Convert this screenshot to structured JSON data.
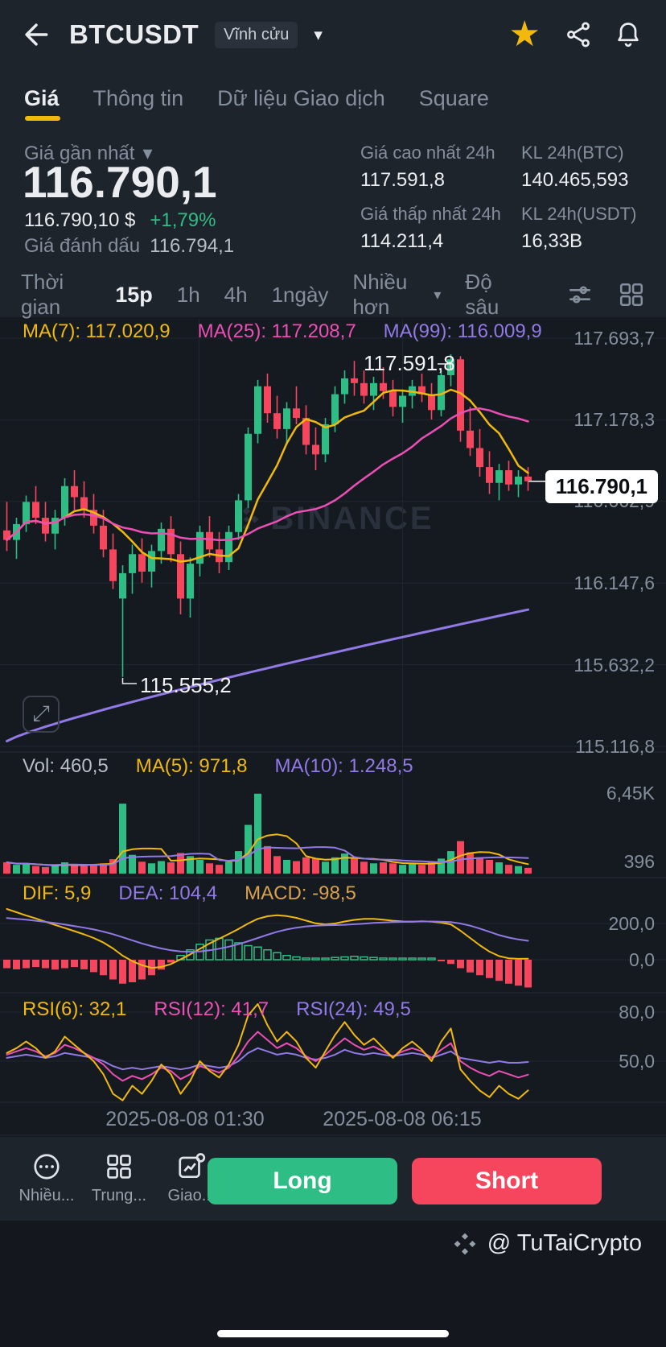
{
  "colors": {
    "green": "#2EBD85",
    "red": "#F6465D",
    "yellow": "#F0B90B",
    "purple": "#9179E6",
    "pink": "#EC4FB4",
    "accent": "#F0B90B"
  },
  "icons": {
    "chevron_down": "▾",
    "star": "★",
    "expand_glyph": "⤢"
  },
  "header": {
    "title": "BTCUSDT",
    "contract_badge": "Vĩnh cửu"
  },
  "tabs": [
    {
      "label": "Giá",
      "active": true
    },
    {
      "label": "Thông tin",
      "active": false
    },
    {
      "label": "Dữ liệu Giao dịch",
      "active": false
    },
    {
      "label": "Square",
      "active": false
    }
  ],
  "ticker": {
    "last_price_label": "Giá gần nhất",
    "last_price": "116.790,1",
    "fiat_value": "116.790,10 $",
    "change_pct": "+1,79%",
    "mark_price_label": "Giá đánh dấu",
    "mark_price": "116.794,1",
    "stats": [
      {
        "label": "Giá cao nhất 24h",
        "value": "117.591,8"
      },
      {
        "label": "KL 24h(BTC)",
        "value": "140.465,593"
      },
      {
        "label": "Giá thấp nhất 24h",
        "value": "114.211,4"
      },
      {
        "label": "KL 24h(USDT)",
        "value": "16,33B"
      }
    ]
  },
  "interval_bar": {
    "time_label": "Thời gian",
    "intervals": [
      "15p",
      "1h",
      "4h",
      "1ngày"
    ],
    "active_interval": "15p",
    "more_label": "Nhiều hơn",
    "depth_label": "Độ sâu"
  },
  "chart": {
    "ma_header": {
      "ma7": "MA(7): 117.020,9",
      "ma25": "MA(25): 117.208,7",
      "ma99": "MA(99): 116.009,9"
    },
    "y_axis_labels": [
      "117.693,7",
      "117.178,3",
      "116.662,9",
      "116.147,6",
      "115.632,2",
      "115.116,8"
    ],
    "price_axis": {
      "top_value": 117693.7,
      "bottom_value": 115116.8
    },
    "current_price_tag": "116.790,1",
    "high_annotation": "117.591,8",
    "low_annotation": "115.555,2",
    "watermark": "BINANCE",
    "candles": [
      [
        116480,
        116660,
        116350,
        116420
      ],
      [
        116420,
        116560,
        116300,
        116520
      ],
      [
        116520,
        116700,
        116470,
        116660
      ],
      [
        116660,
        116760,
        116520,
        116560
      ],
      [
        116560,
        116660,
        116410,
        116460
      ],
      [
        116460,
        116610,
        116360,
        116560
      ],
      [
        116560,
        116810,
        116510,
        116760
      ],
      [
        116760,
        116860,
        116610,
        116690
      ],
      [
        116690,
        116790,
        116560,
        116610
      ],
      [
        116610,
        116710,
        116460,
        116510
      ],
      [
        116510,
        116610,
        116310,
        116360
      ],
      [
        116360,
        116460,
        116110,
        116160
      ],
      [
        116050,
        116260,
        115555.2,
        116210
      ],
      [
        116210,
        116390,
        116080,
        116330
      ],
      [
        116330,
        116430,
        116150,
        116220
      ],
      [
        116220,
        116390,
        116120,
        116350
      ],
      [
        116350,
        116530,
        116270,
        116490
      ],
      [
        116490,
        116570,
        116280,
        116330
      ],
      [
        116330,
        116410,
        115950,
        116050
      ],
      [
        116050,
        116310,
        115930,
        116270
      ],
      [
        116270,
        116510,
        116190,
        116470
      ],
      [
        116470,
        116570,
        116310,
        116360
      ],
      [
        116360,
        116470,
        116210,
        116280
      ],
      [
        116280,
        116510,
        116230,
        116470
      ],
      [
        116470,
        116710,
        116420,
        116670
      ],
      [
        116670,
        117130,
        116620,
        117090
      ],
      [
        117090,
        117430,
        117030,
        117390
      ],
      [
        117390,
        117470,
        117160,
        117220
      ],
      [
        117220,
        117330,
        117060,
        117120
      ],
      [
        117120,
        117290,
        117020,
        117250
      ],
      [
        117250,
        117390,
        117150,
        117190
      ],
      [
        117190,
        117270,
        116960,
        117020
      ],
      [
        117020,
        117130,
        116860,
        116960
      ],
      [
        116960,
        117190,
        116910,
        117150
      ],
      [
        117150,
        117390,
        117100,
        117340
      ],
      [
        117340,
        117490,
        117280,
        117440
      ],
      [
        117440,
        117550,
        117330,
        117410
      ],
      [
        117410,
        117490,
        117280,
        117330
      ],
      [
        117330,
        117450,
        117240,
        117410
      ],
      [
        117410,
        117510,
        117310,
        117360
      ],
      [
        117360,
        117430,
        117200,
        117260
      ],
      [
        117260,
        117370,
        117160,
        117330
      ],
      [
        117330,
        117430,
        117250,
        117390
      ],
      [
        117390,
        117470,
        117290,
        117340
      ],
      [
        117340,
        117410,
        117180,
        117240
      ],
      [
        117240,
        117490,
        117200,
        117460
      ],
      [
        117460,
        117591.8,
        117390,
        117560
      ],
      [
        117560,
        117580,
        117040,
        117110
      ],
      [
        117110,
        117260,
        116950,
        117000
      ],
      [
        117000,
        117120,
        116820,
        116880
      ],
      [
        116880,
        116980,
        116710,
        116780
      ],
      [
        116780,
        116900,
        116670,
        116860
      ],
      [
        116860,
        116920,
        116730,
        116770
      ],
      [
        116770,
        116860,
        116690,
        116820
      ],
      [
        116820,
        116880,
        116730,
        116790.1
      ]
    ],
    "ma99": {
      "start": 115150,
      "end": 115980
    },
    "volume": {
      "header_vol": "Vol: 460,5",
      "header_ma5": "MA(5): 971,8",
      "header_ma10": "MA(10): 1.248,5",
      "axis_labels": [
        "6,45K",
        "396"
      ],
      "values": [
        900,
        700,
        800,
        600,
        520,
        650,
        900,
        720,
        610,
        660,
        820,
        1150,
        5600,
        1500,
        950,
        820,
        1000,
        900,
        1650,
        1400,
        1100,
        820,
        700,
        950,
        1800,
        3900,
        6400,
        2200,
        1400,
        1100,
        1000,
        1300,
        1200,
        950,
        1300,
        1600,
        1200,
        950,
        820,
        900,
        820,
        700,
        820,
        700,
        900,
        1200,
        1800,
        2600,
        1700,
        1300,
        1100,
        900,
        700,
        600,
        460
      ]
    },
    "macd": {
      "header_dif": "DIF: 5,9",
      "header_dea": "DEA: 104,4",
      "header_macd": "MACD: -98,5",
      "axis_labels": [
        "200,0",
        "0,0"
      ],
      "dif": [
        280,
        262,
        244,
        228,
        210,
        192,
        175,
        158,
        140,
        120,
        95,
        62,
        22,
        -8,
        -30,
        -45,
        -40,
        -24,
        2,
        30,
        60,
        90,
        116,
        142,
        170,
        200,
        226,
        240,
        246,
        241,
        231,
        216,
        201,
        195,
        200,
        211,
        220,
        226,
        226,
        221,
        215,
        211,
        210,
        212,
        210,
        205,
        195,
        160,
        120,
        80,
        45,
        20,
        8,
        5,
        5.9
      ],
      "dea": [
        230,
        226,
        221,
        215,
        209,
        202,
        194,
        186,
        177,
        167,
        155,
        141,
        124,
        107,
        90,
        75,
        62,
        52,
        46,
        44,
        46,
        52,
        61,
        72,
        86,
        102,
        120,
        138,
        154,
        167,
        177,
        184,
        188,
        190,
        191,
        193,
        196,
        199,
        203,
        206,
        208,
        209,
        210,
        211,
        211,
        210,
        208,
        200,
        188,
        172,
        154,
        136,
        122,
        112,
        104.4
      ],
      "hist": [
        -30,
        -34,
        -30,
        -26,
        -30,
        -35,
        -30,
        -26,
        -34,
        -44,
        -55,
        -70,
        -85,
        -80,
        -70,
        -55,
        -35,
        -10,
        15,
        35,
        55,
        70,
        76,
        70,
        60,
        50,
        45,
        35,
        25,
        15,
        10,
        6,
        4,
        5,
        8,
        10,
        12,
        10,
        8,
        6,
        5,
        4,
        3,
        3,
        2,
        -5,
        -15,
        -30,
        -45,
        -55,
        -65,
        -75,
        -85,
        -92,
        -98.5
      ]
    },
    "rsi": {
      "header_rsi6": "RSI(6): 32,1",
      "header_rsi12": "RSI(12): 41,7",
      "header_rsi24": "RSI(24): 49,5",
      "axis_labels": [
        "80,0",
        "50,0"
      ],
      "rsi6": [
        55,
        58,
        62,
        58,
        52,
        56,
        65,
        60,
        55,
        50,
        42,
        30,
        26,
        35,
        30,
        38,
        48,
        42,
        30,
        38,
        50,
        44,
        40,
        48,
        60,
        78,
        85,
        72,
        62,
        68,
        62,
        52,
        46,
        56,
        66,
        74,
        66,
        60,
        64,
        58,
        52,
        58,
        62,
        57,
        50,
        62,
        70,
        45,
        38,
        32,
        28,
        35,
        30,
        27,
        32.1
      ],
      "rsi12": [
        54,
        56,
        58,
        56,
        53,
        55,
        60,
        58,
        55,
        52,
        48,
        42,
        38,
        41,
        39,
        42,
        46,
        44,
        39,
        42,
        47,
        45,
        43,
        46,
        53,
        62,
        68,
        63,
        58,
        61,
        58,
        53,
        50,
        54,
        59,
        64,
        60,
        57,
        59,
        56,
        53,
        56,
        58,
        56,
        52,
        57,
        61,
        50,
        46,
        43,
        41,
        44,
        42,
        40,
        41.7
      ],
      "rsi24": [
        52,
        53,
        54,
        53,
        52,
        53,
        55,
        54,
        53,
        52,
        50,
        47,
        45,
        46,
        45,
        46,
        47,
        46,
        45,
        46,
        48,
        47,
        46,
        47,
        50,
        55,
        58,
        56,
        54,
        55,
        54,
        52,
        51,
        52,
        54,
        57,
        55,
        54,
        55,
        54,
        53,
        54,
        55,
        54,
        52,
        54,
        56,
        52,
        51,
        50,
        49,
        50,
        49,
        49,
        49.5
      ]
    },
    "x_axis_labels": [
      "2025-08-08 01:30",
      "2025-08-08 06:15"
    ]
  },
  "bottom_bar": {
    "tools": [
      {
        "label": "Nhiều..."
      },
      {
        "label": "Trung..."
      },
      {
        "label": "Giao..."
      }
    ],
    "long_label": "Long",
    "short_label": "Short"
  },
  "footer": {
    "credit": "@ TuTaiCrypto"
  }
}
